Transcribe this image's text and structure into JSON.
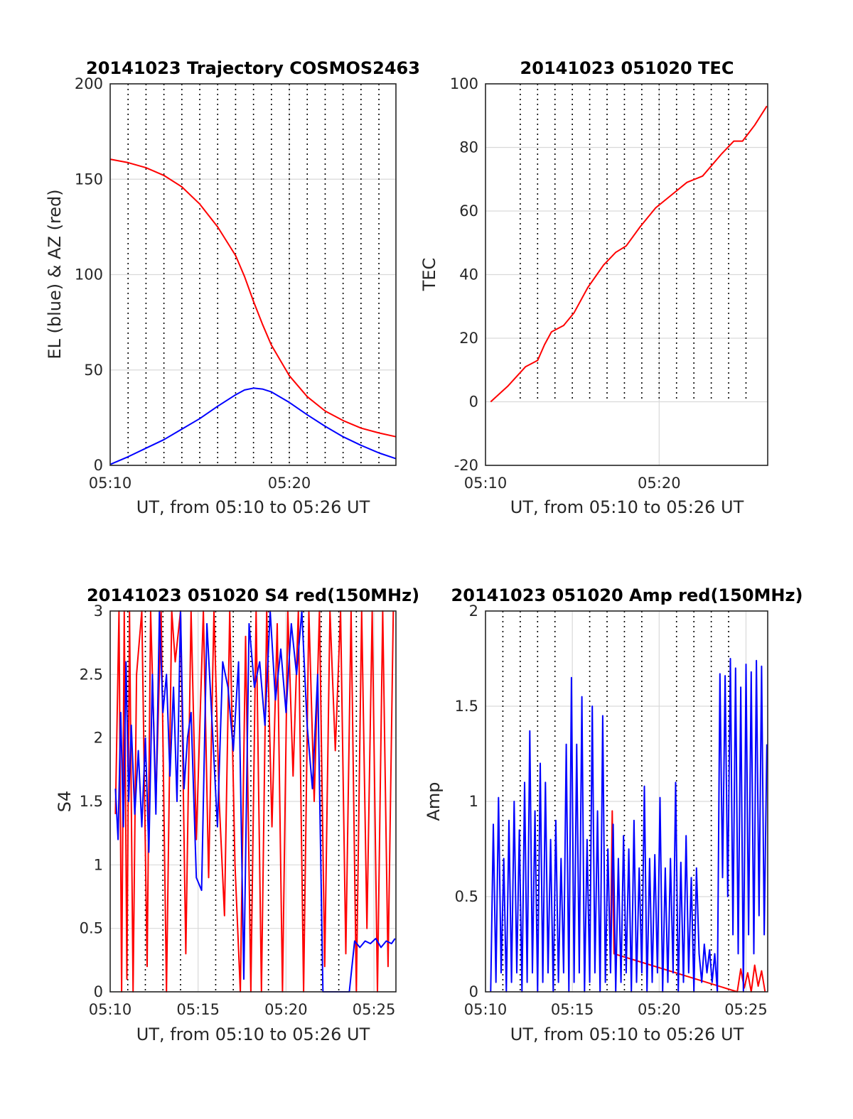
{
  "colors": {
    "red": "#ff0000",
    "blue": "#0000ff",
    "grid": "#d9d9d9",
    "vgrid": "#000000",
    "axis": "#262626"
  },
  "chart_data": [
    {
      "type": "line",
      "title": "20141023 Trajectory COSMOS2463",
      "xlabel": "UT, from 05:10 to 05:26 UT",
      "ylabel": "EL (blue) & AZ (red)",
      "xlim": [
        0,
        15.95
      ],
      "ylim": [
        0,
        200
      ],
      "xticks": [
        0,
        10
      ],
      "xtick_labels": [
        "05:10",
        "05:20"
      ],
      "yticks": [
        0,
        50,
        100,
        150,
        200
      ],
      "ytick_labels": [
        "0",
        "50",
        "100",
        "150",
        "200"
      ],
      "dotted_minutes": [
        1,
        2,
        3,
        4,
        5,
        6,
        7,
        8,
        9,
        10,
        11,
        12,
        13,
        14,
        15
      ],
      "grid": true,
      "series": [
        {
          "color": "red",
          "x": [
            0,
            1,
            2,
            3,
            4,
            5,
            6,
            7,
            7.5,
            8,
            8.5,
            9,
            10,
            11,
            12,
            13,
            14,
            15,
            15.95
          ],
          "y": [
            160.5,
            158.7,
            156,
            152,
            146,
            137,
            125,
            110,
            99,
            86,
            74,
            63,
            47,
            36,
            28.5,
            23.5,
            19.5,
            17,
            15
          ]
        },
        {
          "color": "blue",
          "x": [
            0,
            1,
            2,
            3,
            4,
            5,
            6,
            7,
            7.5,
            8,
            8.5,
            9,
            10,
            11,
            12,
            13,
            14,
            15,
            15.95
          ],
          "y": [
            0.5,
            4.5,
            9,
            13.5,
            19,
            24.5,
            31,
            37,
            39.5,
            40.5,
            40,
            38.5,
            33,
            26.5,
            20.5,
            15,
            10.5,
            6.5,
            3.5
          ]
        }
      ]
    },
    {
      "type": "line",
      "title": "20141023 051020 TEC",
      "xlabel": "UT, from 05:10 to 05:26 UT",
      "ylabel": "TEC",
      "xlim": [
        -0.3,
        15.95
      ],
      "ylim": [
        -20,
        100
      ],
      "xticks": [
        -0.3,
        9.7
      ],
      "xtick_labels": [
        "05:10",
        "05:20"
      ],
      "yticks": [
        -20,
        0,
        20,
        40,
        60,
        80,
        100
      ],
      "ytick_labels": [
        "-20",
        "0",
        "20",
        "40",
        "60",
        "80",
        "100"
      ],
      "dotted_minutes": [
        1.7,
        2.7,
        3.7,
        4.7,
        5.7,
        6.7,
        7.7,
        8.7,
        9.7,
        10.7,
        11.7,
        12.7,
        13.7,
        14.7
      ],
      "dotted_range": [
        0,
        100
      ],
      "grid": true,
      "series": [
        {
          "color": "red",
          "x": [
            0,
            1,
            2,
            2.7,
            3.1,
            3.5,
            4.2,
            4.8,
            5.6,
            6.5,
            7.2,
            7.8,
            8.6,
            9.5,
            10.4,
            11.3,
            12.2,
            13.3,
            14.0,
            14.5,
            15.2,
            15.9
          ],
          "y": [
            0,
            5,
            11,
            13,
            18,
            22,
            24,
            28,
            36,
            43,
            47,
            49,
            55,
            61,
            65,
            69,
            71,
            78,
            82,
            82,
            87,
            93
          ]
        }
      ]
    },
    {
      "type": "line",
      "title": "20141023 051020 S4 red(150MHz)",
      "xlabel": "UT, from 05:10 to 05:26 UT",
      "ylabel": "S4",
      "xlim": [
        -0.3,
        15.95
      ],
      "ylim": [
        0,
        3
      ],
      "xticks": [
        -0.3,
        4.7,
        9.7,
        14.7
      ],
      "xtick_labels": [
        "05:10",
        "05:15",
        "05:20",
        "05:25"
      ],
      "yticks": [
        0,
        0.5,
        1,
        1.5,
        2,
        2.5,
        3
      ],
      "ytick_labels": [
        "0",
        "0.5",
        "1",
        "1.5",
        "2",
        "2.5",
        "3"
      ],
      "dotted_minutes": [
        0.7,
        1.7,
        2.7,
        3.7,
        5.7,
        6.7,
        7.7,
        8.7,
        10.7,
        11.7,
        12.7,
        13.7
      ],
      "grid": true,
      "series": [
        {
          "color": "red",
          "x": [
            0,
            0.2,
            0.35,
            0.5,
            0.65,
            0.8,
            1.0,
            1.2,
            1.5,
            1.8,
            2.0,
            2.3,
            2.6,
            2.9,
            3.2,
            3.4,
            3.7,
            4.0,
            4.3,
            4.6,
            5.0,
            5.3,
            5.6,
            5.9,
            6.2,
            6.5,
            6.8,
            7.1,
            7.4,
            7.7,
            8.0,
            8.3,
            8.6,
            8.9,
            9.2,
            9.5,
            9.8,
            10.1,
            10.4,
            10.7,
            11.0,
            11.3,
            11.6,
            11.9,
            12.2,
            12.5,
            12.8,
            13.1,
            13.4,
            13.7,
            14.0,
            14.3,
            14.6,
            14.9,
            15.2,
            15.5,
            15.8
          ],
          "y": [
            1.4,
            3,
            0,
            3,
            0.1,
            3,
            0,
            2.5,
            3,
            0.2,
            3,
            1.5,
            3,
            0,
            3,
            2.6,
            3,
            0.3,
            3,
            1.2,
            3,
            0.9,
            3,
            1.5,
            0.6,
            3,
            1.0,
            0,
            2.8,
            0,
            3,
            0,
            3,
            1.3,
            2.9,
            0,
            3,
            1.7,
            3,
            0,
            3,
            1.5,
            3,
            0.2,
            3,
            1.9,
            3,
            0.3,
            3,
            0,
            3,
            0.5,
            3,
            0,
            3,
            0.2,
            3
          ]
        },
        {
          "color": "blue",
          "x": [
            0,
            0.15,
            0.3,
            0.45,
            0.6,
            0.75,
            0.9,
            1.1,
            1.3,
            1.5,
            1.7,
            1.9,
            2.1,
            2.3,
            2.5,
            2.7,
            2.9,
            3.1,
            3.3,
            3.5,
            3.7,
            3.9,
            4.1,
            4.3,
            4.6,
            4.9,
            5.2,
            5.5,
            5.8,
            6.1,
            6.4,
            6.7,
            7.0,
            7.3,
            7.6,
            7.9,
            8.2,
            8.5,
            8.8,
            9.1,
            9.4,
            9.7,
            10.0,
            10.3,
            10.6,
            10.9,
            11.2,
            11.5,
            11.8,
            12.1,
            12.4,
            12.7,
            13.0,
            13.3,
            13.6,
            13.9,
            14.2,
            14.5,
            14.8,
            15.1,
            15.4,
            15.7,
            15.9
          ],
          "y": [
            1.6,
            1.2,
            2.2,
            1.3,
            2.6,
            1.5,
            2.1,
            1.4,
            1.9,
            1.3,
            2.0,
            1.1,
            2.5,
            1.4,
            3,
            2.2,
            2.5,
            1.7,
            2.4,
            1.5,
            3,
            1.6,
            2.0,
            2.2,
            0.9,
            0.8,
            2.9,
            2.1,
            1.3,
            2.6,
            2.4,
            1.9,
            2.6,
            0.1,
            2.9,
            2.4,
            2.6,
            2.1,
            3,
            2.3,
            2.7,
            2.2,
            2.9,
            2.5,
            3,
            2.1,
            1.6,
            2.5,
            0,
            0,
            0,
            0,
            0,
            0,
            0.4,
            0.35,
            0.4,
            0.38,
            0.42,
            0.35,
            0.4,
            0.38,
            0.42
          ]
        }
      ]
    },
    {
      "type": "line",
      "title": "20141023 051020 Amp red(150MHz)",
      "xlabel": "UT, from 05:10 to 05:26 UT",
      "ylabel": "Amp",
      "xlim": [
        -0.3,
        15.95
      ],
      "ylim": [
        0,
        2
      ],
      "xticks": [
        -0.3,
        4.7,
        9.7,
        14.7
      ],
      "xtick_labels": [
        "05:10",
        "05:15",
        "05:20",
        "05:25"
      ],
      "yticks": [
        0,
        0.5,
        1,
        1.5,
        2
      ],
      "ytick_labels": [
        "0",
        "0.5",
        "1",
        "1.5",
        "2"
      ],
      "dotted_minutes": [
        0.7,
        1.7,
        2.7,
        3.7,
        5.7,
        6.7,
        7.7,
        8.7,
        10.7,
        11.7,
        12.7,
        13.7
      ],
      "grid": true,
      "series": [
        {
          "color": "red",
          "x": [
            6.9,
            7.0,
            7.1,
            14.2,
            14.4,
            14.6,
            14.8,
            15.0,
            15.2,
            15.4,
            15.6,
            15.8
          ],
          "y": [
            0.2,
            0.95,
            0.2,
            0.0,
            0.12,
            0.02,
            0.1,
            0.0,
            0.14,
            0.03,
            0.11,
            0.0
          ]
        },
        {
          "color": "blue",
          "x": [
            0.0,
            0.15,
            0.3,
            0.45,
            0.6,
            0.75,
            0.9,
            1.05,
            1.2,
            1.35,
            1.5,
            1.65,
            1.8,
            1.95,
            2.1,
            2.25,
            2.4,
            2.55,
            2.7,
            2.85,
            3.0,
            3.15,
            3.3,
            3.45,
            3.6,
            3.75,
            3.9,
            4.05,
            4.2,
            4.35,
            4.5,
            4.65,
            4.8,
            4.95,
            5.1,
            5.25,
            5.4,
            5.55,
            5.7,
            5.85,
            6.0,
            6.15,
            6.3,
            6.45,
            6.6,
            6.75,
            6.9,
            7.05,
            7.2,
            7.35,
            7.5,
            7.65,
            7.8,
            7.95,
            8.1,
            8.25,
            8.4,
            8.55,
            8.7,
            8.85,
            9.0,
            9.15,
            9.3,
            9.45,
            9.6,
            9.75,
            9.9,
            10.05,
            10.2,
            10.35,
            10.5,
            10.65,
            10.8,
            10.95,
            11.1,
            11.25,
            11.4,
            11.55,
            11.7,
            11.85,
            12.0,
            12.15,
            12.3,
            12.45,
            12.6,
            12.75,
            12.9,
            13.05,
            13.2,
            13.35,
            13.5,
            13.65,
            13.8,
            13.95,
            14.1,
            14.25,
            14.4,
            14.55,
            14.7,
            14.85,
            15.0,
            15.15,
            15.3,
            15.45,
            15.6,
            15.75,
            15.9
          ],
          "y": [
            0.0,
            0.88,
            0.05,
            1.02,
            0.1,
            0.7,
            0.0,
            0.9,
            0.05,
            1.0,
            0.1,
            0.85,
            0.0,
            1.1,
            0.05,
            1.37,
            0.1,
            0.95,
            0.0,
            1.2,
            0.05,
            1.1,
            0.1,
            0.8,
            0.0,
            0.9,
            0.05,
            0.7,
            0.1,
            1.3,
            0.0,
            1.65,
            0.05,
            1.3,
            0.1,
            1.55,
            0.0,
            0.8,
            0.05,
            1.5,
            0.1,
            0.95,
            0.0,
            1.45,
            0.05,
            0.75,
            0.1,
            0.88,
            0.0,
            0.7,
            0.05,
            0.82,
            0.1,
            0.75,
            0.0,
            0.9,
            0.05,
            0.65,
            0.1,
            1.08,
            0.0,
            0.7,
            0.05,
            0.72,
            0.1,
            1.02,
            0.0,
            0.65,
            0.05,
            0.7,
            0.1,
            1.1,
            0.0,
            0.68,
            0.05,
            0.82,
            0.1,
            0.6,
            0.0,
            0.65,
            0.2,
            0.05,
            0.25,
            0.1,
            0.22,
            0.05,
            0.2,
            0.0,
            1.67,
            0.6,
            1.66,
            0.5,
            1.75,
            0.3,
            1.7,
            0.2,
            1.6,
            0.0,
            1.72,
            0.3,
            1.68,
            0.2,
            1.74,
            0.4,
            1.71,
            0.3,
            1.3
          ]
        }
      ]
    }
  ]
}
